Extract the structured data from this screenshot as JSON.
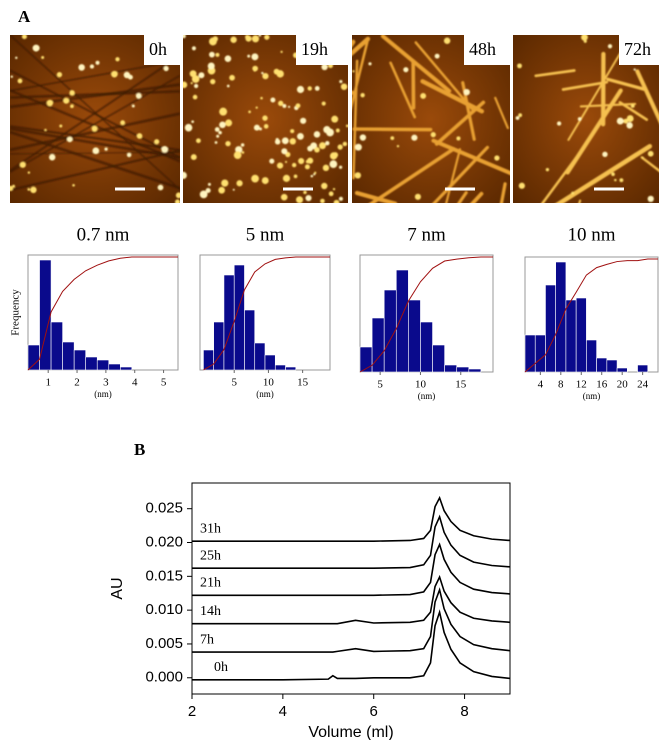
{
  "panels": [
    "A",
    "B"
  ],
  "images": [
    {
      "label": "0h"
    },
    {
      "label": "19h"
    },
    {
      "label": "48h"
    },
    {
      "label": "72h"
    }
  ],
  "chart_data": [
    {
      "type": "histogram",
      "title": "0.7 nm",
      "y_label": "Frequency",
      "x_label": "(nm)",
      "bins": [
        0.3,
        0.7,
        1.1,
        1.5,
        1.9,
        2.3,
        2.7,
        3.1,
        3.5,
        3.9
      ],
      "values": [
        25,
        110,
        48,
        28,
        20,
        13,
        10,
        6,
        3
      ],
      "xlim": [
        0.3,
        5.5
      ],
      "xticks": [
        1,
        2,
        3,
        4,
        5
      ],
      "ylim": [
        0,
        115
      ],
      "color": "#0a0a8c",
      "line_color": "#a01010"
    },
    {
      "type": "histogram",
      "title": "5 nm",
      "x_label": "(nm)",
      "bins": [
        0.5,
        2,
        3.5,
        5,
        6.5,
        8,
        9.5,
        11,
        12.5,
        14
      ],
      "values": [
        20,
        48,
        95,
        105,
        60,
        27,
        15,
        5,
        3
      ],
      "xlim": [
        0,
        19
      ],
      "xticks": [
        5,
        10,
        15
      ],
      "ylim": [
        0,
        115
      ],
      "color": "#0a0a8c",
      "line_color": "#a01010"
    },
    {
      "type": "histogram",
      "title": "7 nm",
      "x_label": "(nm)",
      "bins": [
        2.5,
        4,
        5.5,
        7,
        8.5,
        10,
        11.5,
        13,
        14.5,
        16,
        17.5
      ],
      "values": [
        25,
        54,
        82,
        102,
        72,
        50,
        27,
        7,
        5,
        3
      ],
      "xlim": [
        2.5,
        19
      ],
      "xticks": [
        5,
        10,
        15
      ],
      "ylim": [
        0,
        117
      ],
      "color": "#0a0a8c",
      "line_color": "#a01010"
    },
    {
      "type": "histogram",
      "title": "10 nm",
      "x_label": "(nm)",
      "bins": [
        1,
        3,
        5,
        7,
        9,
        11,
        13,
        15,
        17,
        19,
        21,
        23,
        25
      ],
      "values": [
        37,
        37,
        87,
        110,
        72,
        74,
        32,
        14,
        12,
        4,
        0,
        7
      ],
      "xlim": [
        1,
        27
      ],
      "xticks": [
        4,
        8,
        12,
        16,
        20,
        24
      ],
      "ylim": [
        0,
        115
      ],
      "color": "#0a0a8c",
      "line_color": "#a01010"
    },
    {
      "type": "line",
      "x_label": "Volume (ml)",
      "y_label": "AU",
      "x": [
        2,
        4,
        5,
        5.1,
        5.2,
        5.6,
        6,
        6.8,
        7.1,
        7.25,
        7.35,
        7.45,
        7.55,
        7.7,
        7.9,
        8.2,
        8.6,
        9
      ],
      "series": [
        {
          "name": "0h",
          "color": "#000000",
          "values": [
            -0.0003,
            -0.0003,
            -0.0002,
            0.0003,
            -0.0001,
            -0.0001,
            0.0,
            0.0,
            0.0003,
            0.0022,
            0.0077,
            0.0097,
            0.0067,
            0.0042,
            0.0022,
            0.0009,
            0.0002,
            -0.0001
          ]
        },
        {
          "name": "7h",
          "color": "#000000",
          "values": [
            0.0038,
            0.0038,
            0.0038,
            0.0038,
            0.0039,
            0.0043,
            0.0039,
            0.004,
            0.0043,
            0.0061,
            0.0112,
            0.013,
            0.0102,
            0.0079,
            0.0061,
            0.0049,
            0.0043,
            0.004
          ]
        },
        {
          "name": "14h",
          "color": "#000000",
          "values": [
            0.008,
            0.008,
            0.008,
            0.008,
            0.008,
            0.0085,
            0.0081,
            0.0082,
            0.0085,
            0.0097,
            0.0135,
            0.0149,
            0.0128,
            0.0111,
            0.0097,
            0.0088,
            0.0084,
            0.0082
          ]
        },
        {
          "name": "21h",
          "color": "#000000",
          "values": [
            0.0122,
            0.0122,
            0.0122,
            0.0122,
            0.0122,
            0.0122,
            0.0122,
            0.0123,
            0.0127,
            0.0141,
            0.0182,
            0.0197,
            0.0175,
            0.0156,
            0.0141,
            0.0131,
            0.0126,
            0.0124
          ]
        },
        {
          "name": "25h",
          "color": "#000000",
          "values": [
            0.0162,
            0.0162,
            0.0162,
            0.0162,
            0.0162,
            0.0162,
            0.0162,
            0.0163,
            0.0167,
            0.0181,
            0.0223,
            0.0238,
            0.0215,
            0.0196,
            0.0181,
            0.0171,
            0.0166,
            0.0164
          ]
        },
        {
          "name": "31h",
          "color": "#000000",
          "values": [
            0.0202,
            0.0202,
            0.0202,
            0.0202,
            0.0202,
            0.0202,
            0.0202,
            0.0203,
            0.0206,
            0.0218,
            0.0253,
            0.0266,
            0.0247,
            0.0231,
            0.0218,
            0.021,
            0.0205,
            0.0203
          ]
        }
      ],
      "xlim": [
        2,
        9
      ],
      "xticks": [
        2,
        4,
        6,
        8
      ],
      "ylim": [
        -0.0024,
        0.0288
      ],
      "yticks": [
        {
          "value": 0,
          "label": "0.000"
        },
        {
          "value": 0.005,
          "label": "0.005"
        },
        {
          "value": 0.01,
          "label": "0.010"
        },
        {
          "value": 0.015,
          "label": "0.015"
        },
        {
          "value": 0.02,
          "label": "0.020"
        },
        {
          "value": 0.025,
          "label": "0.025"
        }
      ]
    }
  ]
}
